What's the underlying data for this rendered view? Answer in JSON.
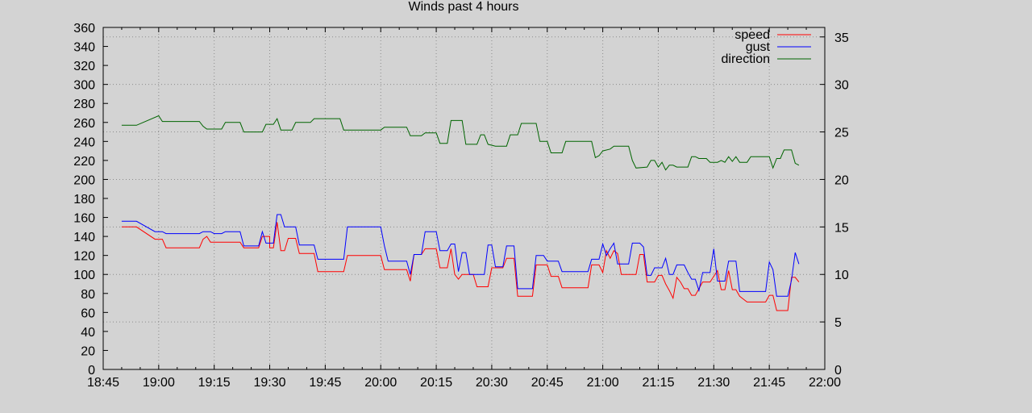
{
  "chart_data": {
    "type": "line",
    "title": "Winds past 4 hours",
    "xlabel": "",
    "ylabel": "",
    "x_ticks": [
      "18:45",
      "19:00",
      "19:15",
      "19:30",
      "19:45",
      "20:00",
      "20:15",
      "20:30",
      "20:45",
      "21:00",
      "21:15",
      "21:30",
      "21:45",
      "22:00"
    ],
    "xlim": [
      "18:45",
      "22:00"
    ],
    "y_left": {
      "min": 0,
      "max": 360,
      "step": 20
    },
    "y_right": {
      "min": 0,
      "max": 36,
      "ticks": [
        0,
        5,
        10,
        15,
        20,
        25,
        30,
        35
      ]
    },
    "grid": true,
    "legend_position": "top-right",
    "series": [
      {
        "name": "speed",
        "color": "#ff0000",
        "axis": "right",
        "points": [
          [
            "18:50",
            15.0
          ],
          [
            "18:54",
            15.0
          ],
          [
            "18:59",
            13.7
          ],
          [
            "19:01",
            13.7
          ],
          [
            "19:02",
            12.8
          ],
          [
            "19:11",
            12.8
          ],
          [
            "19:12",
            13.7
          ],
          [
            "19:13",
            14.0
          ],
          [
            "19:14",
            13.4
          ],
          [
            "19:22",
            13.4
          ],
          [
            "19:23",
            12.8
          ],
          [
            "19:27",
            12.8
          ],
          [
            "19:28",
            14.0
          ],
          [
            "19:30",
            14.0
          ],
          [
            "19:30",
            12.8
          ],
          [
            "19:31",
            12.8
          ],
          [
            "19:32",
            15.5
          ],
          [
            "19:33",
            12.5
          ],
          [
            "19:34",
            12.5
          ],
          [
            "19:35",
            13.8
          ],
          [
            "19:37",
            13.8
          ],
          [
            "19:38",
            12.2
          ],
          [
            "19:42",
            12.2
          ],
          [
            "19:43",
            10.3
          ],
          [
            "19:50",
            10.3
          ],
          [
            "19:51",
            12.0
          ],
          [
            "20:00",
            12.0
          ],
          [
            "20:01",
            10.5
          ],
          [
            "20:07",
            10.5
          ],
          [
            "20:08",
            9.3
          ],
          [
            "20:09",
            12.1
          ],
          [
            "20:11",
            12.1
          ],
          [
            "20:12",
            12.7
          ],
          [
            "20:15",
            12.7
          ],
          [
            "20:16",
            10.7
          ],
          [
            "20:18",
            10.7
          ],
          [
            "20:19",
            12.7
          ],
          [
            "20:20",
            10.0
          ],
          [
            "20:21",
            9.5
          ],
          [
            "20:22",
            10.0
          ],
          [
            "20:25",
            10.0
          ],
          [
            "20:26",
            8.7
          ],
          [
            "20:29",
            8.7
          ],
          [
            "20:30",
            10.7
          ],
          [
            "20:33",
            10.7
          ],
          [
            "20:34",
            11.7
          ],
          [
            "20:36",
            11.7
          ],
          [
            "20:37",
            7.7
          ],
          [
            "20:41",
            7.7
          ],
          [
            "20:42",
            11.0
          ],
          [
            "20:45",
            11.0
          ],
          [
            "20:46",
            9.8
          ],
          [
            "20:48",
            9.8
          ],
          [
            "20:49",
            8.6
          ],
          [
            "20:56",
            8.6
          ],
          [
            "20:57",
            11.0
          ],
          [
            "20:59",
            11.0
          ],
          [
            "21:00",
            10.2
          ],
          [
            "21:01",
            12.5
          ],
          [
            "21:02",
            11.7
          ],
          [
            "21:03",
            12.5
          ],
          [
            "21:04",
            12.2
          ],
          [
            "21:05",
            10.0
          ],
          [
            "21:09",
            10.0
          ],
          [
            "21:10",
            12.1
          ],
          [
            "21:11",
            12.1
          ],
          [
            "21:12",
            9.2
          ],
          [
            "21:14",
            9.2
          ],
          [
            "21:15",
            9.9
          ],
          [
            "21:16",
            9.9
          ],
          [
            "21:17",
            9.0
          ],
          [
            "21:18",
            8.3
          ],
          [
            "21:19",
            7.5
          ],
          [
            "21:20",
            9.7
          ],
          [
            "21:21",
            9.2
          ],
          [
            "21:22",
            8.5
          ],
          [
            "21:23",
            8.5
          ],
          [
            "21:24",
            7.8
          ],
          [
            "21:25",
            7.8
          ],
          [
            "21:26",
            8.5
          ],
          [
            "21:27",
            9.2
          ],
          [
            "21:29",
            9.2
          ],
          [
            "21:30",
            9.8
          ],
          [
            "21:31",
            10.4
          ],
          [
            "21:32",
            8.4
          ],
          [
            "21:33",
            8.4
          ],
          [
            "21:34",
            10.4
          ],
          [
            "21:35",
            8.4
          ],
          [
            "21:36",
            8.4
          ],
          [
            "21:37",
            7.7
          ],
          [
            "21:39",
            7.1
          ],
          [
            "21:44",
            7.1
          ],
          [
            "21:45",
            7.8
          ],
          [
            "21:46",
            7.8
          ],
          [
            "21:47",
            6.2
          ],
          [
            "21:50",
            6.2
          ],
          [
            "21:51",
            9.7
          ],
          [
            "21:52",
            9.7
          ],
          [
            "21:53",
            9.2
          ]
        ]
      },
      {
        "name": "gust",
        "color": "#0000ff",
        "axis": "right",
        "points": [
          [
            "18:50",
            15.6
          ],
          [
            "18:54",
            15.6
          ],
          [
            "18:59",
            14.5
          ],
          [
            "19:01",
            14.5
          ],
          [
            "19:02",
            14.3
          ],
          [
            "19:11",
            14.3
          ],
          [
            "19:12",
            14.5
          ],
          [
            "19:14",
            14.5
          ],
          [
            "19:15",
            14.3
          ],
          [
            "19:17",
            14.3
          ],
          [
            "19:18",
            14.5
          ],
          [
            "19:22",
            14.5
          ],
          [
            "19:23",
            13.0
          ],
          [
            "19:27",
            13.0
          ],
          [
            "19:28",
            14.5
          ],
          [
            "19:29",
            13.3
          ],
          [
            "19:31",
            13.3
          ],
          [
            "19:32",
            16.3
          ],
          [
            "19:33",
            16.3
          ],
          [
            "19:34",
            15.0
          ],
          [
            "19:37",
            15.0
          ],
          [
            "19:38",
            13.1
          ],
          [
            "19:42",
            13.1
          ],
          [
            "19:43",
            11.6
          ],
          [
            "19:50",
            11.6
          ],
          [
            "19:51",
            15.0
          ],
          [
            "20:00",
            15.0
          ],
          [
            "20:01",
            13.0
          ],
          [
            "20:02",
            11.4
          ],
          [
            "20:07",
            11.4
          ],
          [
            "20:08",
            10.0
          ],
          [
            "20:09",
            12.1
          ],
          [
            "20:11",
            12.1
          ],
          [
            "20:12",
            14.5
          ],
          [
            "20:15",
            14.5
          ],
          [
            "20:16",
            12.5
          ],
          [
            "20:18",
            12.5
          ],
          [
            "20:19",
            13.2
          ],
          [
            "20:20",
            13.2
          ],
          [
            "20:21",
            10.3
          ],
          [
            "20:22",
            12.3
          ],
          [
            "20:23",
            12.3
          ],
          [
            "20:24",
            10.0
          ],
          [
            "20:28",
            10.0
          ],
          [
            "20:29",
            13.1
          ],
          [
            "20:30",
            13.1
          ],
          [
            "20:31",
            10.8
          ],
          [
            "20:33",
            10.8
          ],
          [
            "20:34",
            13.0
          ],
          [
            "20:36",
            13.0
          ],
          [
            "20:37",
            8.5
          ],
          [
            "20:41",
            8.5
          ],
          [
            "20:42",
            12.0
          ],
          [
            "20:44",
            12.0
          ],
          [
            "20:45",
            11.4
          ],
          [
            "20:48",
            11.4
          ],
          [
            "20:49",
            10.3
          ],
          [
            "20:56",
            10.3
          ],
          [
            "20:57",
            11.6
          ],
          [
            "20:59",
            11.6
          ],
          [
            "21:00",
            13.2
          ],
          [
            "21:01",
            12.0
          ],
          [
            "21:02",
            12.7
          ],
          [
            "21:03",
            13.3
          ],
          [
            "21:04",
            11.1
          ],
          [
            "21:07",
            11.1
          ],
          [
            "21:08",
            13.3
          ],
          [
            "21:10",
            13.3
          ],
          [
            "21:11",
            12.9
          ],
          [
            "21:12",
            9.9
          ],
          [
            "21:13",
            9.9
          ],
          [
            "21:14",
            10.7
          ],
          [
            "21:16",
            10.7
          ],
          [
            "21:17",
            11.7
          ],
          [
            "21:18",
            10.0
          ],
          [
            "21:19",
            10.0
          ],
          [
            "21:20",
            11.0
          ],
          [
            "21:22",
            11.0
          ],
          [
            "21:23",
            10.2
          ],
          [
            "21:24",
            9.5
          ],
          [
            "21:25",
            9.5
          ],
          [
            "21:26",
            8.3
          ],
          [
            "21:27",
            10.2
          ],
          [
            "21:29",
            10.2
          ],
          [
            "21:30",
            12.7
          ],
          [
            "21:31",
            9.3
          ],
          [
            "21:33",
            9.3
          ],
          [
            "21:34",
            11.4
          ],
          [
            "21:36",
            11.4
          ],
          [
            "21:37",
            8.2
          ],
          [
            "21:44",
            8.2
          ],
          [
            "21:45",
            11.3
          ],
          [
            "21:46",
            10.5
          ],
          [
            "21:47",
            7.7
          ],
          [
            "21:50",
            7.7
          ],
          [
            "21:51",
            9.4
          ],
          [
            "21:52",
            12.3
          ],
          [
            "21:53",
            11.1
          ]
        ]
      },
      {
        "name": "direction",
        "color": "#006400",
        "axis": "left",
        "points": [
          [
            "18:50",
            257
          ],
          [
            "18:54",
            257
          ],
          [
            "19:00",
            267
          ],
          [
            "19:01",
            261
          ],
          [
            "19:11",
            261
          ],
          [
            "19:12",
            256
          ],
          [
            "19:13",
            253
          ],
          [
            "19:17",
            253
          ],
          [
            "19:18",
            260
          ],
          [
            "19:22",
            260
          ],
          [
            "19:23",
            250
          ],
          [
            "19:28",
            250
          ],
          [
            "19:29",
            258
          ],
          [
            "19:31",
            258
          ],
          [
            "19:32",
            264
          ],
          [
            "19:33",
            252
          ],
          [
            "19:36",
            252
          ],
          [
            "19:37",
            260
          ],
          [
            "19:41",
            260
          ],
          [
            "19:42",
            264
          ],
          [
            "19:49",
            264
          ],
          [
            "19:50",
            252
          ],
          [
            "20:00",
            252
          ],
          [
            "20:01",
            255
          ],
          [
            "20:07",
            255
          ],
          [
            "20:08",
            246
          ],
          [
            "20:11",
            246
          ],
          [
            "20:12",
            249
          ],
          [
            "20:15",
            249
          ],
          [
            "20:16",
            238
          ],
          [
            "20:18",
            238
          ],
          [
            "20:19",
            262
          ],
          [
            "20:22",
            262
          ],
          [
            "20:23",
            237
          ],
          [
            "20:26",
            237
          ],
          [
            "20:27",
            247
          ],
          [
            "20:28",
            247
          ],
          [
            "20:29",
            237
          ],
          [
            "20:31",
            235
          ],
          [
            "20:34",
            235
          ],
          [
            "20:35",
            247
          ],
          [
            "20:37",
            247
          ],
          [
            "20:38",
            259
          ],
          [
            "20:42",
            259
          ],
          [
            "20:43",
            240
          ],
          [
            "20:45",
            240
          ],
          [
            "20:46",
            228
          ],
          [
            "20:49",
            228
          ],
          [
            "20:50",
            240
          ],
          [
            "20:57",
            240
          ],
          [
            "20:58",
            223
          ],
          [
            "20:59",
            225
          ],
          [
            "21:00",
            230
          ],
          [
            "21:02",
            232
          ],
          [
            "21:03",
            235
          ],
          [
            "21:07",
            235
          ],
          [
            "21:08",
            220
          ],
          [
            "21:09",
            212
          ],
          [
            "21:12",
            213
          ],
          [
            "21:13",
            220
          ],
          [
            "21:14",
            220
          ],
          [
            "21:15",
            213
          ],
          [
            "21:16",
            218
          ],
          [
            "21:17",
            210
          ],
          [
            "21:18",
            215
          ],
          [
            "21:19",
            215
          ],
          [
            "21:20",
            213
          ],
          [
            "21:23",
            213
          ],
          [
            "21:24",
            224
          ],
          [
            "21:25",
            224
          ],
          [
            "21:26",
            222
          ],
          [
            "21:28",
            222
          ],
          [
            "21:29",
            218
          ],
          [
            "21:31",
            218
          ],
          [
            "21:32",
            220
          ],
          [
            "21:33",
            218
          ],
          [
            "21:34",
            224
          ],
          [
            "21:35",
            219
          ],
          [
            "21:36",
            224
          ],
          [
            "21:37",
            218
          ],
          [
            "21:39",
            218
          ],
          [
            "21:40",
            224
          ],
          [
            "21:45",
            224
          ],
          [
            "21:46",
            212
          ],
          [
            "21:47",
            222
          ],
          [
            "21:48",
            222
          ],
          [
            "21:49",
            231
          ],
          [
            "21:51",
            231
          ],
          [
            "21:52",
            217
          ],
          [
            "21:53",
            215
          ]
        ]
      }
    ]
  }
}
